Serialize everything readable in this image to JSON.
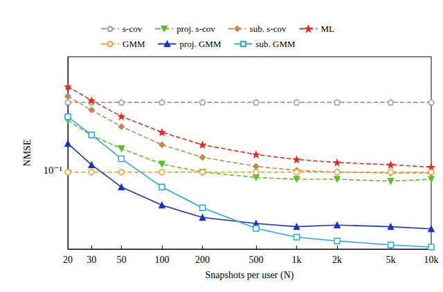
{
  "chart_data": {
    "type": "line",
    "x_label": "Snapshots per user (N)",
    "y_label": "NMSE",
    "log": true,
    "grid": false,
    "legend": "top",
    "x": [
      20,
      30,
      50,
      100,
      200,
      500,
      1000,
      2000,
      5000,
      10000
    ],
    "xlim": [
      20,
      10000
    ],
    "xticks": [
      20,
      30,
      50,
      100,
      200,
      500,
      {
        "value": 1000,
        "label": "1k"
      },
      {
        "value": 2000,
        "label": "2k"
      },
      {
        "value": 5000,
        "label": "5k"
      },
      {
        "value": 10000,
        "label": "10k"
      }
    ],
    "ylim": [
      0.039,
      0.39
    ],
    "yticks": [
      {
        "value": 0.1,
        "label": "10⁻¹"
      }
    ],
    "series": [
      {
        "name": "s-cov",
        "color": "#9a9a9a",
        "marker": "pentagon",
        "line_style": "dashed",
        "values": [
          0.226,
          0.226,
          0.226,
          0.226,
          0.226,
          0.226,
          0.226,
          0.226,
          0.226,
          0.226
        ]
      },
      {
        "name": "proj. s-cov",
        "color": "#5cbf2a",
        "marker": "triangle-down",
        "line_style": "dashed",
        "values": [
          0.182,
          0.152,
          0.13,
          0.108,
          0.098,
          0.092,
          0.09,
          0.09,
          0.088,
          0.09
        ]
      },
      {
        "name": "sub. s-cov",
        "color": "#bf8a4f",
        "marker": "diamond",
        "line_style": "dashed",
        "values": [
          0.243,
          0.206,
          0.169,
          0.136,
          0.117,
          0.105,
          0.1,
          0.098,
          0.097,
          0.097
        ]
      },
      {
        "name": "ML",
        "color": "#e8281c",
        "marker": "star",
        "line_style": "dashed",
        "values": [
          0.273,
          0.231,
          0.191,
          0.158,
          0.136,
          0.121,
          0.114,
          0.11,
          0.107,
          0.104
        ]
      },
      {
        "name": "GMM",
        "color": "#f39a2e",
        "marker": "circle",
        "line_style": "dashed",
        "values": [
          0.098,
          0.098,
          0.098,
          0.098,
          0.098,
          0.098,
          0.098,
          0.098,
          0.098,
          0.098
        ]
      },
      {
        "name": "proj. GMM",
        "color": "#1a33c2",
        "marker": "triangle",
        "line_style": "solid",
        "values": [
          0.138,
          0.107,
          0.082,
          0.066,
          0.057,
          0.053,
          0.051,
          0.052,
          0.051,
          0.0497
        ]
      },
      {
        "name": "sub. GMM",
        "color": "#2aa7e0",
        "marker": "square",
        "line_style": "solid",
        "values": [
          0.19,
          0.153,
          0.115,
          0.082,
          0.064,
          0.05,
          0.045,
          0.043,
          0.041,
          0.04
        ]
      }
    ]
  }
}
